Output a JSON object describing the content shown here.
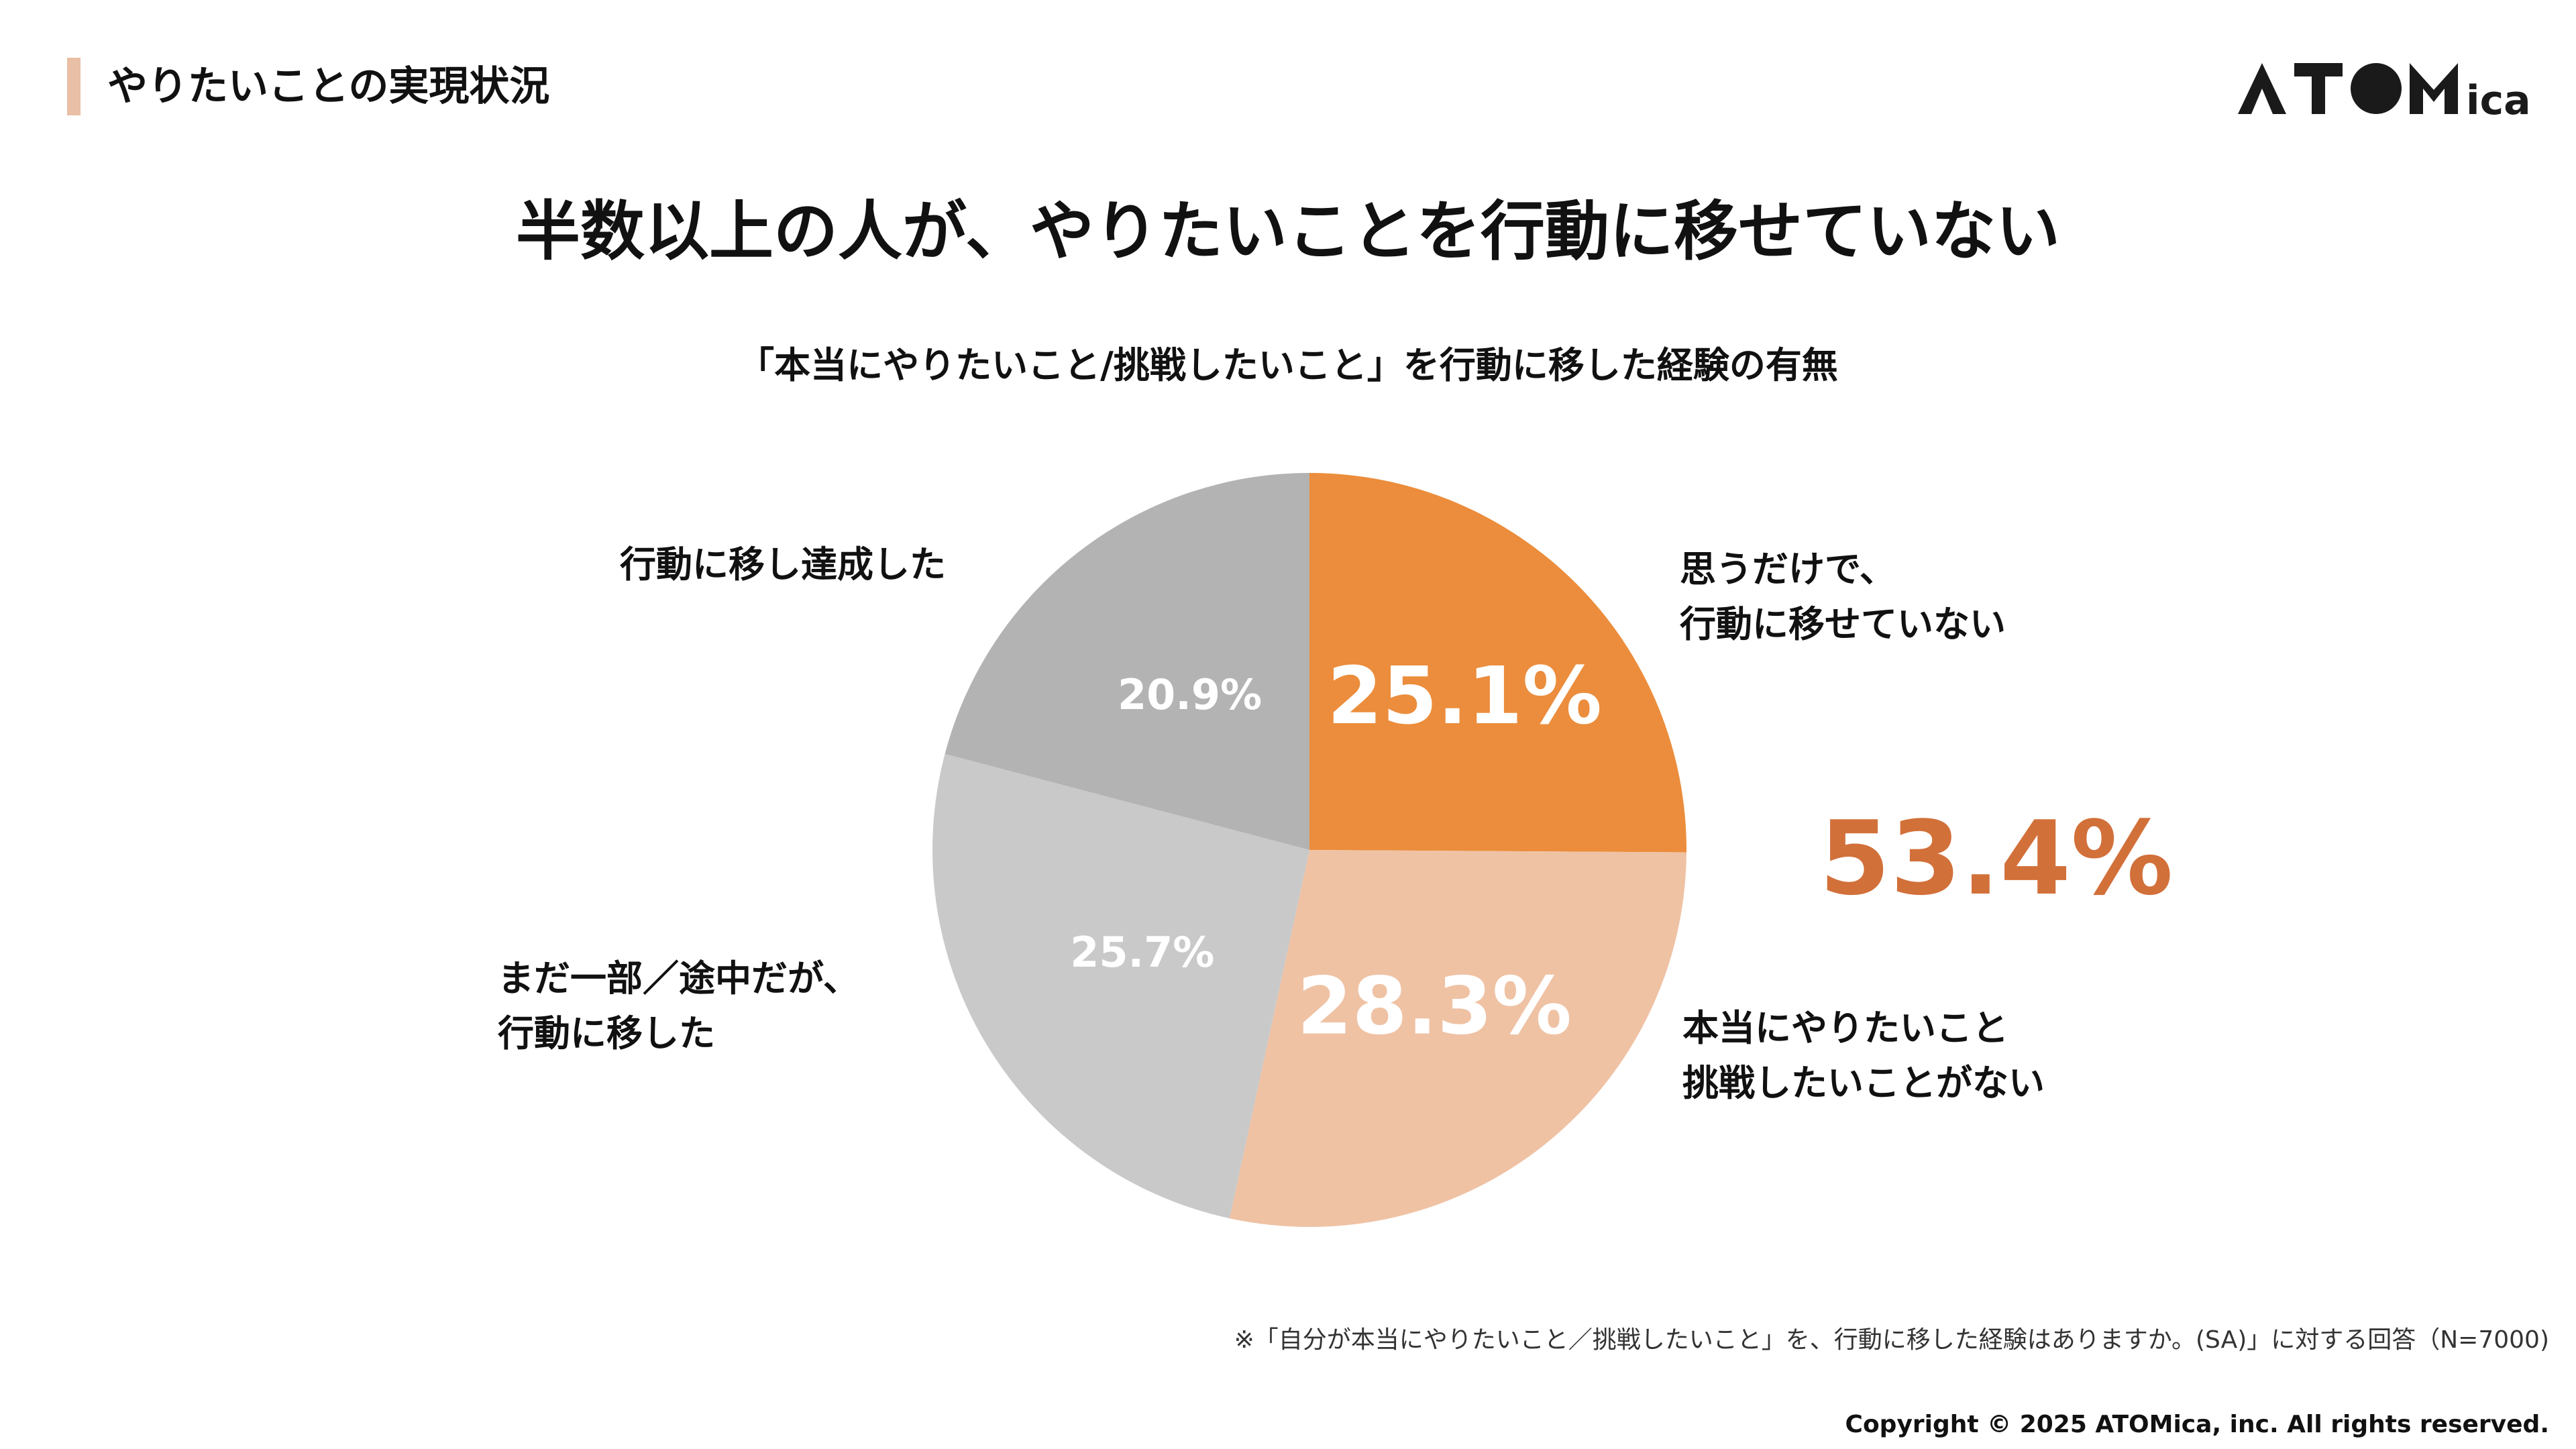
{
  "section": {
    "title": "やりたいことの実現状況",
    "accent_color": "#E9BFA5"
  },
  "logo": {
    "text": "ATOMica",
    "color": "#1a1a1a"
  },
  "headline": "半数以上の人が、やりたいことを行動に移せていない",
  "subtitle": "「本当にやりたいこと/挑戦したいこと」を行動に移した経験の有無",
  "chart_data": {
    "type": "pie",
    "title": "「本当にやりたいこと/挑戦したいこと」を行動に移した経験の有無",
    "start": "12 o'clock, clockwise",
    "slices": [
      {
        "label_lines": [
          "思うだけで、",
          "行動に移せていない"
        ],
        "value": 25.1,
        "display": "25.1%",
        "color": "#EB8D3C",
        "value_color": "#ffffff"
      },
      {
        "label_lines": [
          "本当にやりたいこと",
          "挑戦したいことがない"
        ],
        "value": 28.3,
        "display": "28.3%",
        "color": "#EFC2A4",
        "value_color": "#ffffff"
      },
      {
        "label_lines": [
          "まだ一部／途中だが、",
          "行動に移した"
        ],
        "value": 25.7,
        "display": "25.7%",
        "color": "#C9C9C9",
        "value_color": "#ffffff"
      },
      {
        "label_lines": [
          "行動に移し達成した"
        ],
        "value": 20.9,
        "display": "20.9%",
        "color": "#B3B3B3",
        "value_color": "#ffffff"
      }
    ],
    "annotation": {
      "text": "53.4%",
      "color": "#D2703A"
    }
  },
  "footnote": "※「自分が本当にやりたいこと／挑戦したいこと」を、行動に移した経験はありますか。(SA)」に対する回答（N=7000)",
  "copyright": "Copyright © 2025 ATOMica, inc. All rights reserved."
}
